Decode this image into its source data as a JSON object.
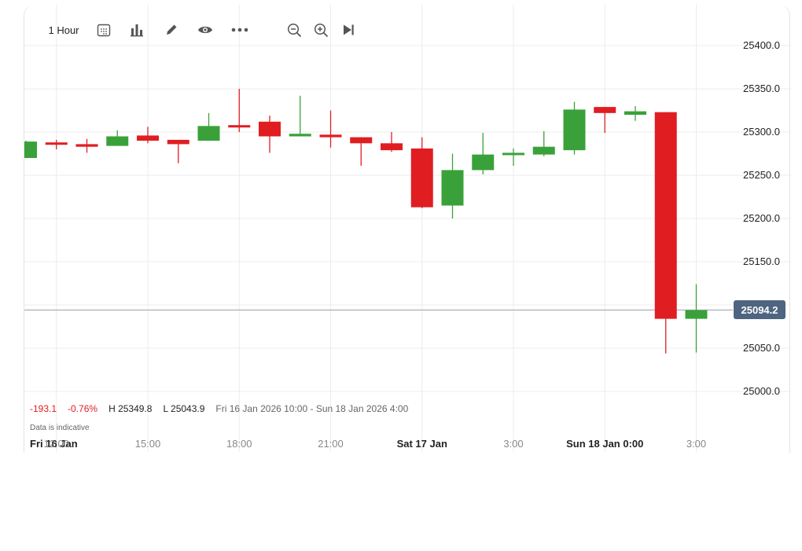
{
  "toolbar": {
    "interval_label": "1 Hour",
    "icons": [
      "calendar-icon",
      "bar-chart-icon",
      "pencil-icon",
      "eye-icon",
      "more-icon",
      "zoom-out-icon",
      "zoom-in-icon",
      "skip-to-end-icon"
    ]
  },
  "stats": {
    "change": "-193.1",
    "change_pct": "-0.76%",
    "high": "H 25349.8",
    "low": "L 25043.9",
    "range": "Fri 16 Jan 2026 10:00 - Sun 18 Jan 2026 4:00"
  },
  "disclaimer": "Data is indicative",
  "current_price": "25094.2",
  "colors": {
    "up": "#3aa13a",
    "down": "#e01e22",
    "price_tag": "#4f6480"
  },
  "chart_data": {
    "type": "candlestick",
    "ylim": [
      24960,
      25420
    ],
    "y_ticks": [
      "25400.0",
      "25350.0",
      "25300.0",
      "25250.0",
      "25200.0",
      "25150.0",
      "25100.0",
      "25050.0",
      "25000.0"
    ],
    "x_ticks": [
      {
        "label": "Fri 16 Jan",
        "bold": true,
        "index": -2.45
      },
      {
        "label": "12:00",
        "bold": false,
        "index": 1
      },
      {
        "label": "15:00",
        "bold": false,
        "index": 4
      },
      {
        "label": "18:00",
        "bold": false,
        "index": 7
      },
      {
        "label": "21:00",
        "bold": false,
        "index": 10
      },
      {
        "label": "Sat 17 Jan",
        "bold": true,
        "index": 13
      },
      {
        "label": "3:00",
        "bold": false,
        "index": 16
      },
      {
        "label": "Sun 18 Jan 0:00",
        "bold": true,
        "index": 19
      },
      {
        "label": "3:00",
        "bold": false,
        "index": 22
      }
    ],
    "current_price": 25094.2,
    "candles": [
      {
        "o": 25270,
        "h": 25290,
        "l": 25270,
        "c": 25289
      },
      {
        "o": 25288,
        "h": 25291,
        "l": 25280,
        "c": 25286
      },
      {
        "o": 25286,
        "h": 25292,
        "l": 25276,
        "c": 25283
      },
      {
        "o": 25284,
        "h": 25302,
        "l": 25284,
        "c": 25295
      },
      {
        "o": 25296,
        "h": 25306,
        "l": 25287,
        "c": 25290
      },
      {
        "o": 25291,
        "h": 25291,
        "l": 25264,
        "c": 25286
      },
      {
        "o": 25290,
        "h": 25322,
        "l": 25290,
        "c": 25307
      },
      {
        "o": 25308,
        "h": 25350,
        "l": 25300,
        "c": 25306
      },
      {
        "o": 25312,
        "h": 25319,
        "l": 25276,
        "c": 25295
      },
      {
        "o": 25295,
        "h": 25342,
        "l": 25295,
        "c": 25298
      },
      {
        "o": 25297,
        "h": 25325,
        "l": 25282,
        "c": 25294
      },
      {
        "o": 25294,
        "h": 25294,
        "l": 25261,
        "c": 25287
      },
      {
        "o": 25287,
        "h": 25300,
        "l": 25277,
        "c": 25279
      },
      {
        "o": 25281,
        "h": 25294,
        "l": 25212,
        "c": 25213
      },
      {
        "o": 25215,
        "h": 25275,
        "l": 25200,
        "c": 25256
      },
      {
        "o": 25256,
        "h": 25299,
        "l": 25251,
        "c": 25274
      },
      {
        "o": 25274,
        "h": 25281,
        "l": 25261,
        "c": 25276
      },
      {
        "o": 25274,
        "h": 25301,
        "l": 25272,
        "c": 25283
      },
      {
        "o": 25279,
        "h": 25335,
        "l": 25274,
        "c": 25326
      },
      {
        "o": 25329,
        "h": 25329,
        "l": 25299,
        "c": 25322
      },
      {
        "o": 25320,
        "h": 25330,
        "l": 25313,
        "c": 25324
      },
      {
        "o": 25323,
        "h": 25323,
        "l": 25044,
        "c": 25084
      },
      {
        "o": 25084,
        "h": 25124,
        "l": 25045,
        "c": 25094
      }
    ]
  }
}
